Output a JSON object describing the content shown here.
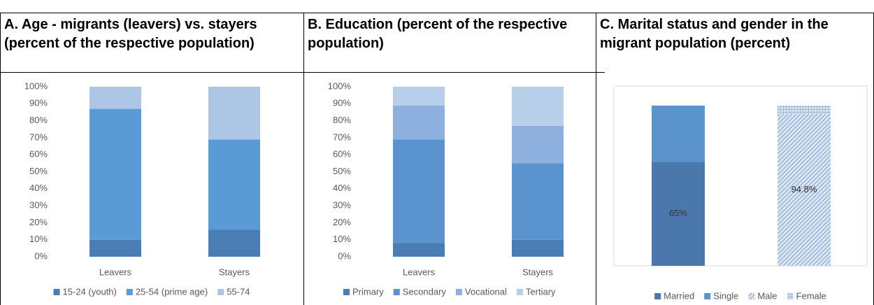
{
  "chart_data": [
    {
      "type": "bar",
      "stacked": true,
      "title": "A. Age - migrants (leavers) vs. stayers (percent of the respective population)",
      "categories": [
        "Leavers",
        "Stayers"
      ],
      "series": [
        {
          "name": "15-24 (youth)",
          "color": "#4a7db4",
          "values": [
            10,
            16
          ]
        },
        {
          "name": "25-54 (prime age)",
          "color": "#5b9bd5",
          "values": [
            77,
            53
          ]
        },
        {
          "name": "55-74",
          "color": "#adc6e6",
          "values": [
            13,
            31
          ]
        }
      ],
      "ylim": [
        0,
        100
      ],
      "yticks": [
        {
          "value": 0,
          "label": "0%"
        },
        {
          "value": 10,
          "label": "10%"
        },
        {
          "value": 20,
          "label": "20%"
        },
        {
          "value": 30,
          "label": "30%"
        },
        {
          "value": 40,
          "label": "40%"
        },
        {
          "value": 50,
          "label": "50%"
        },
        {
          "value": 60,
          "label": "60%"
        },
        {
          "value": 70,
          "label": "70%"
        },
        {
          "value": 80,
          "label": "80%"
        },
        {
          "value": 90,
          "label": "90%"
        },
        {
          "value": 100,
          "label": "100%"
        }
      ],
      "legend": "bottom"
    },
    {
      "type": "bar",
      "stacked": true,
      "title": "B. Education (percent of the respective population)",
      "categories": [
        "Leavers",
        "Stayers"
      ],
      "series": [
        {
          "name": "Primary",
          "color": "#4a7db4",
          "values": [
            8,
            10
          ]
        },
        {
          "name": "Secondary",
          "color": "#5b93cf",
          "values": [
            61,
            45
          ]
        },
        {
          "name": "Vocational",
          "color": "#8db0de",
          "values": [
            20,
            22
          ]
        },
        {
          "name": "Tertiary",
          "color": "#b8cfea",
          "values": [
            11,
            23
          ]
        }
      ],
      "ylim": [
        0,
        100
      ],
      "yticks": [
        {
          "value": 0,
          "label": "0%"
        },
        {
          "value": 10,
          "label": "10%"
        },
        {
          "value": 20,
          "label": "20%"
        },
        {
          "value": 30,
          "label": "30%"
        },
        {
          "value": 40,
          "label": "40%"
        },
        {
          "value": 50,
          "label": "50%"
        },
        {
          "value": 60,
          "label": "60%"
        },
        {
          "value": 70,
          "label": "70%"
        },
        {
          "value": 80,
          "label": "80%"
        },
        {
          "value": 90,
          "label": "90%"
        },
        {
          "value": 100,
          "label": "100%"
        }
      ],
      "legend": "bottom"
    },
    {
      "type": "bar",
      "stacked": true,
      "title": "C. Marital status and gender in the migrant population (percent)",
      "categories": [
        null,
        null
      ],
      "series": [
        {
          "name": "Married",
          "color": "#4a78ad",
          "values": [
            65,
            null
          ],
          "value_labels": [
            "65%",
            null
          ]
        },
        {
          "name": "Single",
          "color": "#5b93cc",
          "values": [
            35,
            null
          ]
        },
        {
          "name": "Male",
          "color": "#a9c4e4",
          "pattern": "hatch",
          "values": [
            null,
            94.8
          ],
          "value_labels": [
            null,
            "94.8%"
          ]
        },
        {
          "name": "Female",
          "color": "#6f8fbf",
          "pattern": "grid",
          "values": [
            null,
            5.2
          ]
        }
      ],
      "legend": "bottom"
    }
  ]
}
